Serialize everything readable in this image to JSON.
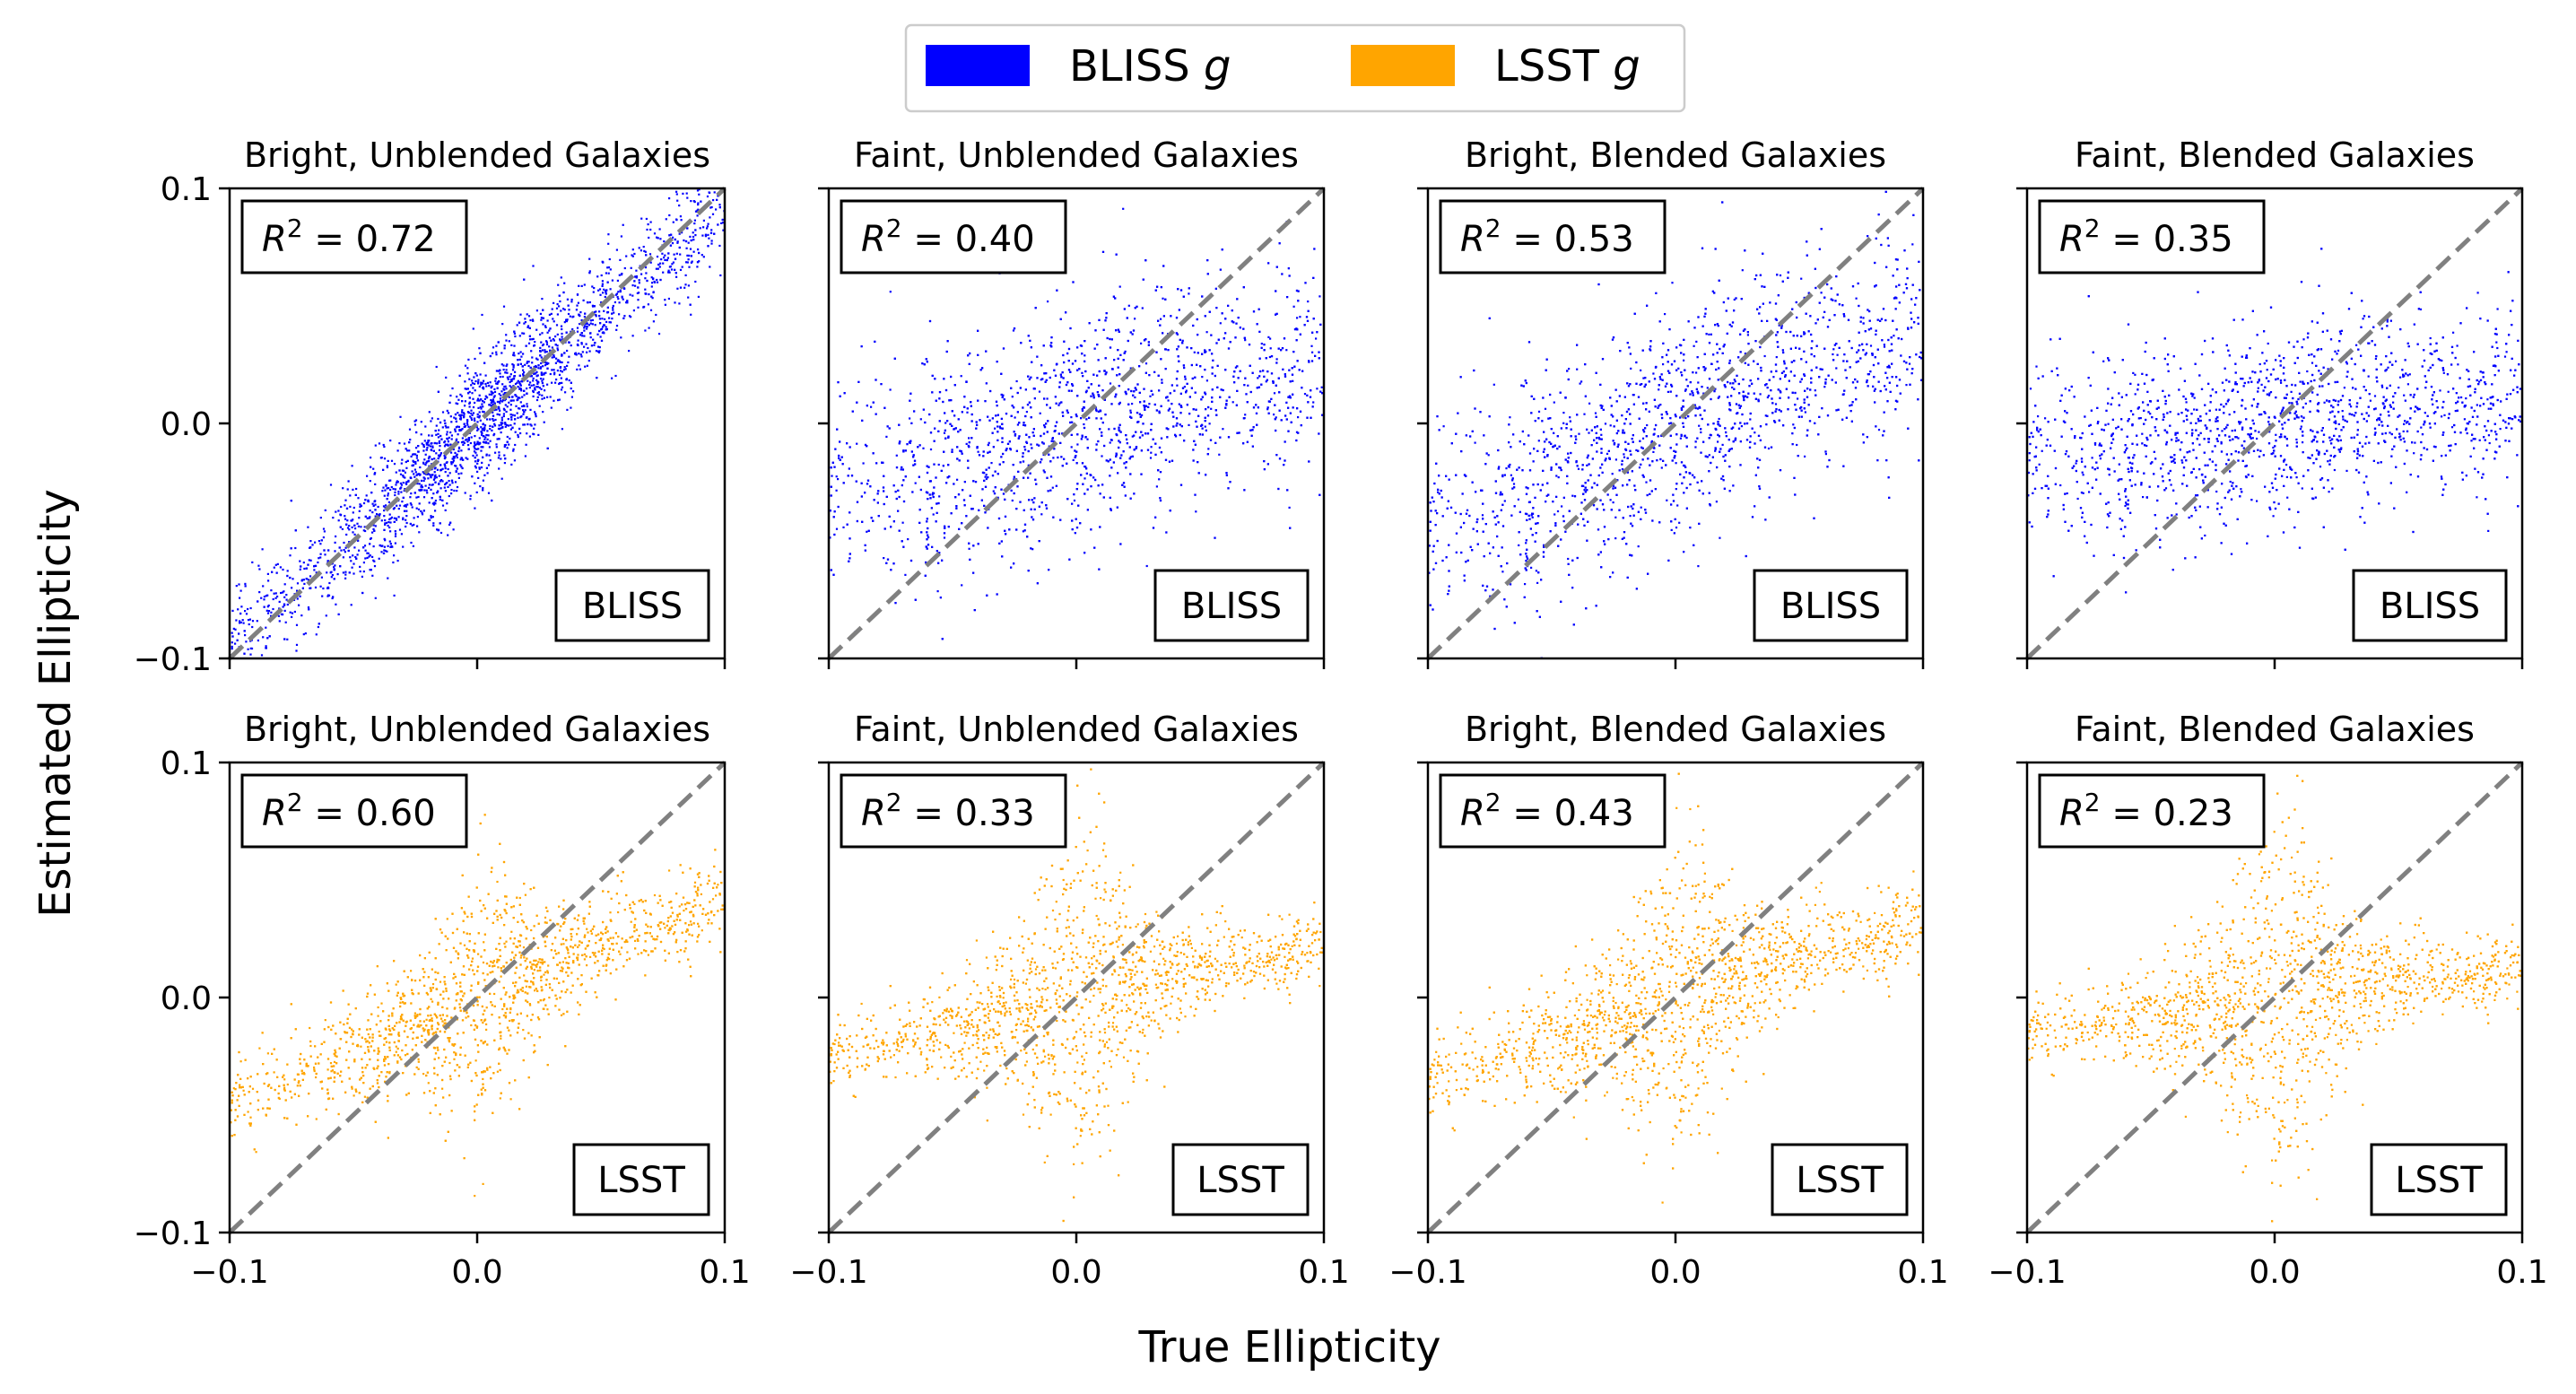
{
  "legend": {
    "items": [
      {
        "label": "BLISS",
        "band": "g",
        "color": "#0000ff"
      },
      {
        "label": "LSST",
        "band": "g",
        "color": "#ffa500"
      }
    ]
  },
  "axes_labels": {
    "xlabel": "True Ellipticity",
    "ylabel": "Estimated Ellipticity"
  },
  "chart_data": [
    {
      "type": "scatter",
      "row": "BLISS",
      "title": "Bright, Unblended Galaxies",
      "method": "BLISS",
      "r2": "0.72",
      "color": "#0000ff",
      "xlim": [
        -0.1,
        0.1
      ],
      "ylim": [
        -0.1,
        0.1
      ],
      "xticks": [
        "−0.1",
        "0.0",
        "0.1"
      ],
      "yticks": [
        "−0.1",
        "0.0",
        "0.1"
      ],
      "diagonal": [
        [
          -0.1,
          -0.1
        ],
        [
          0.1,
          0.1
        ]
      ]
    },
    {
      "type": "scatter",
      "row": "BLISS",
      "title": "Faint, Unblended Galaxies",
      "method": "BLISS",
      "r2": "0.40",
      "color": "#0000ff",
      "xlim": [
        -0.1,
        0.1
      ],
      "ylim": [
        -0.1,
        0.1
      ],
      "xticks": [
        "−0.1",
        "0.0",
        "0.1"
      ],
      "yticks": [
        "−0.1",
        "0.0",
        "0.1"
      ],
      "diagonal": [
        [
          -0.1,
          -0.1
        ],
        [
          0.1,
          0.1
        ]
      ]
    },
    {
      "type": "scatter",
      "row": "BLISS",
      "title": "Bright, Blended Galaxies",
      "method": "BLISS",
      "r2": "0.53",
      "color": "#0000ff",
      "xlim": [
        -0.1,
        0.1
      ],
      "ylim": [
        -0.1,
        0.1
      ],
      "xticks": [
        "−0.1",
        "0.0",
        "0.1"
      ],
      "yticks": [
        "−0.1",
        "0.0",
        "0.1"
      ],
      "diagonal": [
        [
          -0.1,
          -0.1
        ],
        [
          0.1,
          0.1
        ]
      ]
    },
    {
      "type": "scatter",
      "row": "BLISS",
      "title": "Faint, Blended Galaxies",
      "method": "BLISS",
      "r2": "0.35",
      "color": "#0000ff",
      "xlim": [
        -0.1,
        0.1
      ],
      "ylim": [
        -0.1,
        0.1
      ],
      "xticks": [
        "−0.1",
        "0.0",
        "0.1"
      ],
      "yticks": [
        "−0.1",
        "0.0",
        "0.1"
      ],
      "diagonal": [
        [
          -0.1,
          -0.1
        ],
        [
          0.1,
          0.1
        ]
      ]
    },
    {
      "type": "scatter",
      "row": "LSST",
      "title": "Bright, Unblended Galaxies",
      "method": "LSST",
      "r2": "0.60",
      "color": "#ffa500",
      "xlim": [
        -0.1,
        0.1
      ],
      "ylim": [
        -0.1,
        0.1
      ],
      "xticks": [
        "−0.1",
        "0.0",
        "0.1"
      ],
      "yticks": [
        "−0.1",
        "0.0",
        "0.1"
      ],
      "diagonal": [
        [
          -0.1,
          -0.1
        ],
        [
          0.1,
          0.1
        ]
      ]
    },
    {
      "type": "scatter",
      "row": "LSST",
      "title": "Faint, Unblended Galaxies",
      "method": "LSST",
      "r2": "0.33",
      "color": "#ffa500",
      "xlim": [
        -0.1,
        0.1
      ],
      "ylim": [
        -0.1,
        0.1
      ],
      "xticks": [
        "−0.1",
        "0.0",
        "0.1"
      ],
      "yticks": [
        "−0.1",
        "0.0",
        "0.1"
      ],
      "diagonal": [
        [
          -0.1,
          -0.1
        ],
        [
          0.1,
          0.1
        ]
      ]
    },
    {
      "type": "scatter",
      "row": "LSST",
      "title": "Bright, Blended Galaxies",
      "method": "LSST",
      "r2": "0.43",
      "color": "#ffa500",
      "xlim": [
        -0.1,
        0.1
      ],
      "ylim": [
        -0.1,
        0.1
      ],
      "xticks": [
        "−0.1",
        "0.0",
        "0.1"
      ],
      "yticks": [
        "−0.1",
        "0.0",
        "0.1"
      ],
      "diagonal": [
        [
          -0.1,
          -0.1
        ],
        [
          0.1,
          0.1
        ]
      ]
    },
    {
      "type": "scatter",
      "row": "LSST",
      "title": "Faint, Blended Galaxies",
      "method": "LSST",
      "r2": "0.23",
      "color": "#ffa500",
      "xlim": [
        -0.1,
        0.1
      ],
      "ylim": [
        -0.1,
        0.1
      ],
      "xticks": [
        "−0.1",
        "0.0",
        "0.1"
      ],
      "yticks": [
        "−0.1",
        "0.0",
        "0.1"
      ],
      "diagonal": [
        [
          -0.1,
          -0.1
        ],
        [
          0.1,
          0.1
        ]
      ]
    }
  ]
}
